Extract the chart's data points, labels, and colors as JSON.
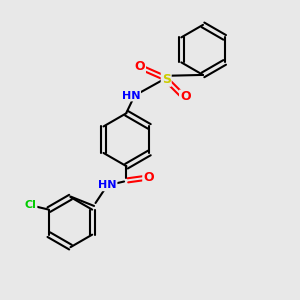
{
  "bg_color": "#e8e8e8",
  "atom_colors": {
    "N": "#0000ff",
    "O": "#ff0000",
    "S": "#cccc00",
    "Cl": "#00cc00",
    "C": "#000000",
    "H": "#808080"
  },
  "bond_color": "#000000",
  "bond_width": 1.5
}
